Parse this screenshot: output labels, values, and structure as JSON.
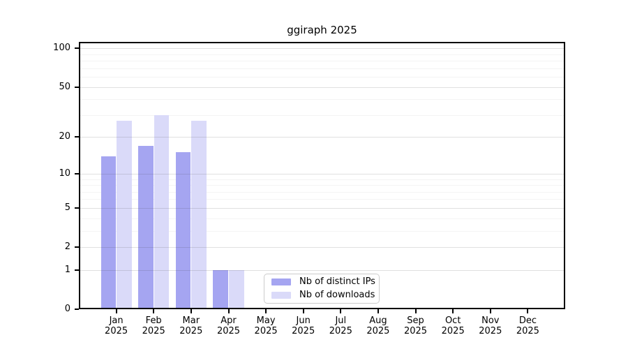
{
  "chart_data": {
    "type": "bar",
    "title": "ggiraph 2025",
    "x_tick_labels": [
      "Jan 2025",
      "Feb 2025",
      "Mar 2025",
      "Apr 2025",
      "May 2025",
      "Jun 2025",
      "Jul 2025",
      "Aug 2025",
      "Sep 2025",
      "Oct 2025",
      "Nov 2025",
      "Dec 2025"
    ],
    "series": [
      {
        "name": "Nb of distinct IPs",
        "color": "#a5a5f1",
        "values": [
          14,
          17,
          15,
          1,
          0,
          0,
          0,
          0,
          0,
          0,
          0,
          0
        ]
      },
      {
        "name": "Nb of downloads",
        "color": "#dadaf9",
        "values": [
          27,
          30,
          27,
          1,
          0,
          0,
          0,
          0,
          0,
          0,
          0,
          0
        ]
      }
    ],
    "y_axis": {
      "scale": "log10(value+1)",
      "major_ticks": [
        100,
        50,
        20,
        10,
        5,
        2,
        1,
        0
      ],
      "minor_ticks": [
        90,
        80,
        70,
        60,
        40,
        30,
        9,
        8,
        7,
        6,
        4,
        3
      ],
      "range": [
        0,
        112
      ]
    },
    "grid": "horizontal, major and minor, light gray",
    "legend_position": "inside lower-center"
  },
  "legend": {
    "items": [
      {
        "label": "Nb of distinct IPs",
        "color": "#a5a5f1"
      },
      {
        "label": "Nb of downloads",
        "color": "#dadaf9"
      }
    ]
  }
}
